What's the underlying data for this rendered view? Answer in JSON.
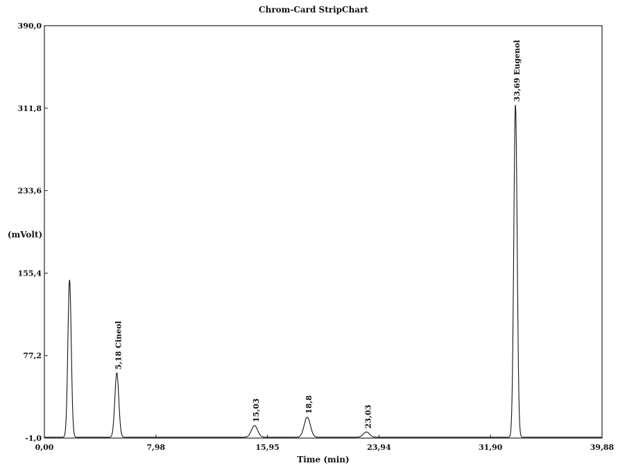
{
  "chart_data": {
    "type": "line",
    "title": "Chrom-Card StripChart",
    "xlabel": "Time (min)",
    "ylabel": "(mVolt)",
    "xlim": [
      0.0,
      39.88
    ],
    "ylim": [
      -1.0,
      390.0
    ],
    "x_ticks": [
      "0,00",
      "7,98",
      "15,95",
      "23,94",
      "31,90",
      "39,88"
    ],
    "y_ticks": [
      "-1,0",
      "77,2",
      "155,4",
      "233,6",
      "311,8",
      "390,0"
    ],
    "grid": false,
    "series": [
      {
        "peaks": [
          {
            "time": 1.8,
            "height": 148
          },
          {
            "time": 5.18,
            "height": 60,
            "label": "5,18 Cineol"
          },
          {
            "time": 15.03,
            "height": 10,
            "label": "15,03"
          },
          {
            "time": 18.8,
            "height": 18,
            "label": "18,8"
          },
          {
            "time": 23.03,
            "height": 4,
            "label": "23,03"
          },
          {
            "time": 33.69,
            "height": 314,
            "label": "33,69 Eugenol"
          }
        ]
      }
    ]
  }
}
